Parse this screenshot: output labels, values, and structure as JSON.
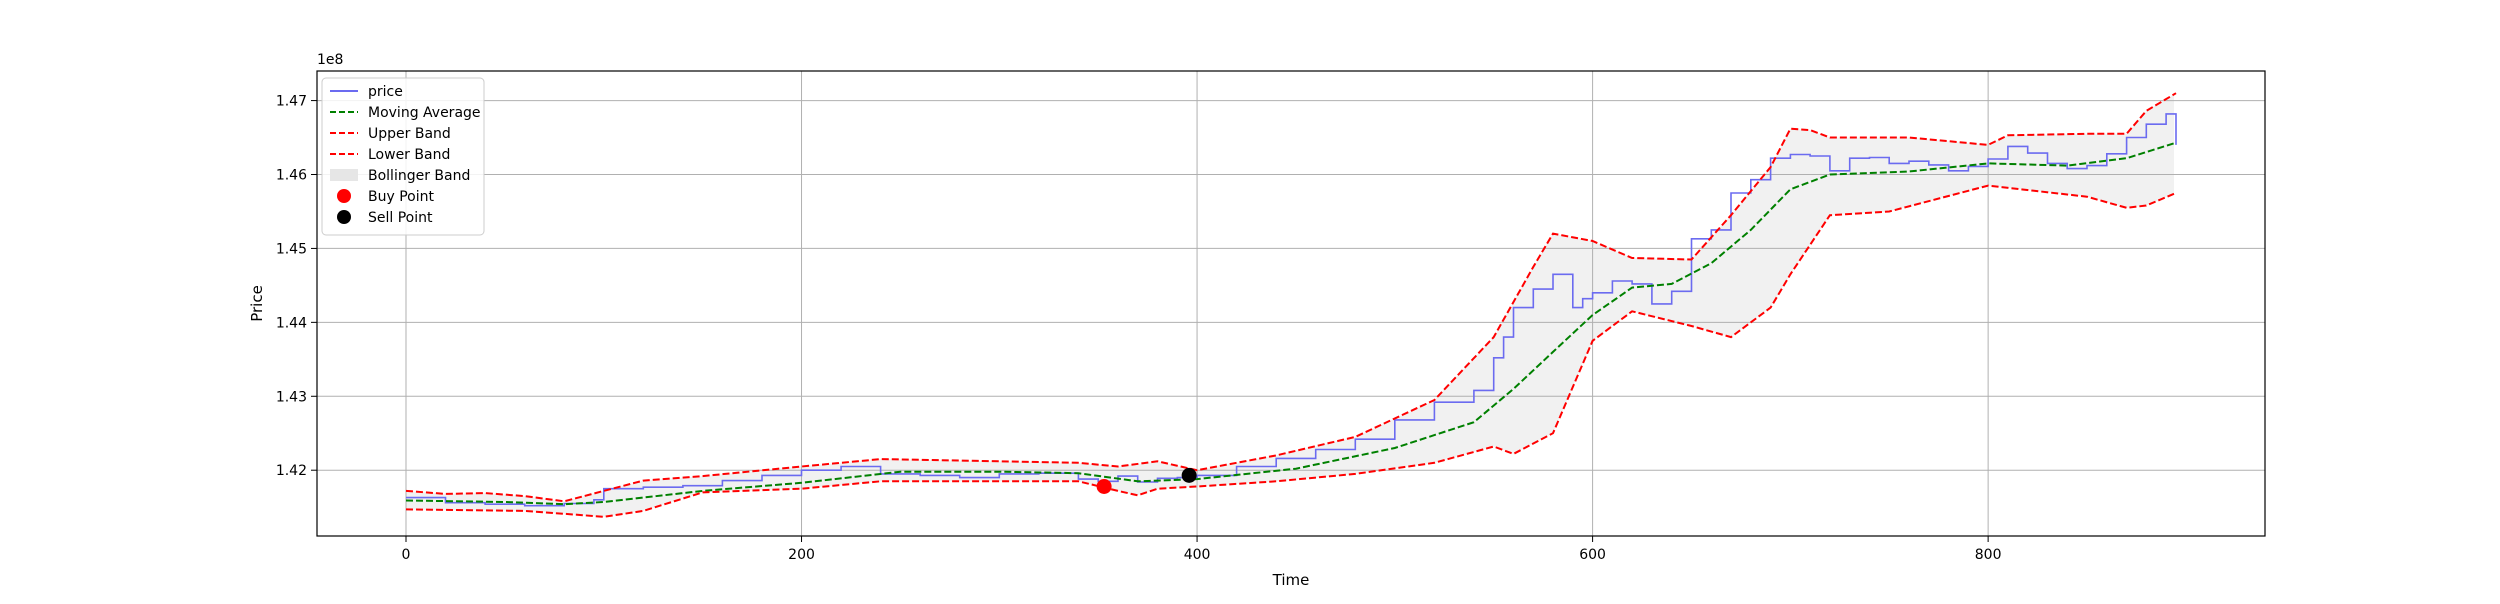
{
  "chart_data": {
    "type": "line",
    "xlabel": "Time",
    "ylabel": "Price",
    "y_multiplier_label": "1e8",
    "y_scale": 100000000,
    "xlim": [
      -45,
      940
    ],
    "ylim": [
      1.4111,
      1.474
    ],
    "x_ticks": [
      0,
      200,
      400,
      600,
      800
    ],
    "x_tick_labels": [
      "0",
      "200",
      "400",
      "600",
      "800"
    ],
    "y_ticks": [
      1.42,
      1.43,
      1.44,
      1.45,
      1.46,
      1.47
    ],
    "y_tick_labels": [
      "1.42",
      "1.43",
      "1.44",
      "1.45",
      "1.46",
      "1.47"
    ],
    "grid": true,
    "legend_position": "top-left",
    "colors": {
      "price": "#6b6bf0",
      "moving_average": "#008000",
      "bands": "#ff0000",
      "band_fill": "#e6e6e6",
      "buy": "#ff0000",
      "sell": "#000000"
    },
    "legend": [
      {
        "label": "price",
        "kind": "line",
        "color": "#6b6bf0",
        "dash": "solid"
      },
      {
        "label": "Moving Average",
        "kind": "line",
        "color": "#008000",
        "dash": "dashed"
      },
      {
        "label": "Upper Band",
        "kind": "line",
        "color": "#ff0000",
        "dash": "dashed"
      },
      {
        "label": "Lower Band",
        "kind": "line",
        "color": "#ff0000",
        "dash": "dashed"
      },
      {
        "label": "Bollinger Band",
        "kind": "patch",
        "color": "#e6e6e6",
        "dash": "solid"
      },
      {
        "label": "Buy Point",
        "kind": "marker",
        "color": "#ff0000",
        "dash": "solid"
      },
      {
        "label": "Sell Point",
        "kind": "marker",
        "color": "#000000",
        "dash": "solid"
      }
    ],
    "series": [
      {
        "name": "price",
        "x": [
          0,
          20,
          40,
          60,
          80,
          95,
          100,
          120,
          140,
          160,
          180,
          200,
          220,
          240,
          260,
          280,
          300,
          320,
          340,
          350,
          360,
          370,
          380,
          390,
          400,
          420,
          440,
          460,
          480,
          500,
          520,
          540,
          550,
          555,
          560,
          570,
          580,
          590,
          595,
          600,
          610,
          620,
          630,
          640,
          650,
          660,
          670,
          680,
          690,
          700,
          710,
          720,
          730,
          740,
          750,
          760,
          770,
          780,
          790,
          800,
          810,
          820,
          830,
          840,
          850,
          860,
          870,
          880,
          890,
          895
        ],
        "values": [
          1.4163,
          1.4156,
          1.4154,
          1.4152,
          1.4155,
          1.416,
          1.4175,
          1.4177,
          1.4179,
          1.4186,
          1.4193,
          1.42,
          1.4205,
          1.4195,
          1.4193,
          1.419,
          1.4195,
          1.4196,
          1.4188,
          1.4185,
          1.4192,
          1.4184,
          1.4189,
          1.419,
          1.4193,
          1.4205,
          1.4216,
          1.4228,
          1.4242,
          1.4268,
          1.4292,
          1.4308,
          1.4352,
          1.438,
          1.442,
          1.4445,
          1.4465,
          1.442,
          1.4432,
          1.444,
          1.4456,
          1.4452,
          1.4425,
          1.4442,
          1.4513,
          1.4525,
          1.4575,
          1.4593,
          1.4622,
          1.4627,
          1.4625,
          1.4605,
          1.4622,
          1.4623,
          1.4615,
          1.4618,
          1.4613,
          1.4605,
          1.4611,
          1.4621,
          1.4638,
          1.4629,
          1.4615,
          1.4608,
          1.4612,
          1.4628,
          1.465,
          1.4668,
          1.4682,
          1.464
        ]
      },
      {
        "name": "Moving Average",
        "x": [
          0,
          50,
          80,
          100,
          150,
          200,
          250,
          300,
          340,
          370,
          400,
          450,
          500,
          540,
          560,
          580,
          600,
          620,
          640,
          660,
          680,
          700,
          720,
          760,
          800,
          840,
          870,
          895
        ],
        "values": [
          1.4159,
          1.4157,
          1.4154,
          1.4157,
          1.4172,
          1.4183,
          1.4198,
          1.4198,
          1.4196,
          1.4185,
          1.4188,
          1.4202,
          1.423,
          1.4265,
          1.431,
          1.436,
          1.441,
          1.4447,
          1.4452,
          1.448,
          1.4525,
          1.458,
          1.46,
          1.4604,
          1.4615,
          1.4612,
          1.4622,
          1.4643
        ]
      },
      {
        "name": "Upper Band",
        "x": [
          0,
          20,
          40,
          60,
          80,
          100,
          120,
          150,
          200,
          240,
          300,
          340,
          360,
          380,
          400,
          440,
          480,
          520,
          550,
          570,
          580,
          600,
          620,
          650,
          670,
          690,
          700,
          710,
          720,
          760,
          800,
          810,
          850,
          870,
          880,
          895
        ],
        "values": [
          1.4172,
          1.4168,
          1.4169,
          1.4165,
          1.4158,
          1.4172,
          1.4186,
          1.4192,
          1.4205,
          1.4215,
          1.4212,
          1.421,
          1.4205,
          1.4212,
          1.42,
          1.422,
          1.4245,
          1.4295,
          1.438,
          1.4475,
          1.452,
          1.451,
          1.4487,
          1.4485,
          1.4545,
          1.461,
          1.4662,
          1.466,
          1.465,
          1.465,
          1.464,
          1.4653,
          1.4655,
          1.4655,
          1.4686,
          1.471
        ]
      },
      {
        "name": "Lower Band",
        "x": [
          0,
          60,
          80,
          100,
          120,
          150,
          200,
          240,
          300,
          340,
          360,
          370,
          380,
          400,
          440,
          480,
          520,
          550,
          560,
          580,
          600,
          620,
          650,
          670,
          690,
          700,
          720,
          750,
          800,
          850,
          870,
          880,
          895
        ],
        "values": [
          1.4147,
          1.4145,
          1.4141,
          1.4137,
          1.4145,
          1.417,
          1.4175,
          1.4185,
          1.4185,
          1.4185,
          1.4172,
          1.4166,
          1.4175,
          1.4178,
          1.4185,
          1.4195,
          1.421,
          1.4232,
          1.4222,
          1.425,
          1.4375,
          1.4415,
          1.4395,
          1.438,
          1.442,
          1.4465,
          1.4545,
          1.455,
          1.4585,
          1.457,
          1.4555,
          1.4558,
          1.4575
        ]
      }
    ],
    "points": [
      {
        "name": "Buy Point",
        "x": 353,
        "y": 1.4178,
        "color": "#ff0000"
      },
      {
        "name": "Sell Point",
        "x": 396,
        "y": 1.4193,
        "color": "#000000"
      }
    ]
  }
}
